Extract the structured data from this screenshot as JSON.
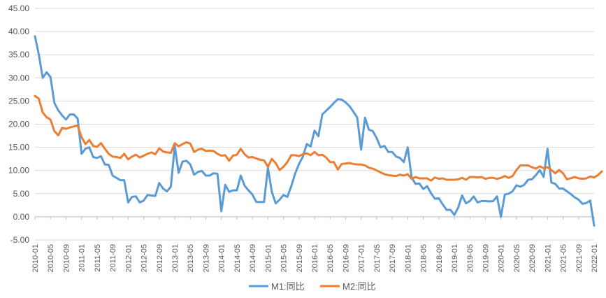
{
  "chart_data": {
    "type": "line",
    "title": "",
    "xlabel": "",
    "ylabel": "",
    "ylim": [
      -5,
      45
    ],
    "y_ticks": [
      "-5.00",
      "0.00",
      "5.00",
      "10.00",
      "15.00",
      "20.00",
      "25.00",
      "30.00",
      "35.00",
      "40.00",
      "45.00"
    ],
    "x_tick_labels": [
      "2010-01",
      "2010-05",
      "2010-09",
      "2011-01",
      "2011-05",
      "2011-09",
      "2012-01",
      "2012-05",
      "2012-09",
      "2013-01",
      "2013-05",
      "2013-09",
      "2014-01",
      "2014-05",
      "2014-09",
      "2015-01",
      "2015-05",
      "2015-09",
      "2016-01",
      "2016-05",
      "2016-09",
      "2017-01",
      "2017-05",
      "2017-09",
      "2018-01",
      "2018-05",
      "2018-09",
      "2019-01",
      "2019-05",
      "2019-09",
      "2020-01",
      "2020-05",
      "2020-09",
      "2021-01",
      "2021-05",
      "2021-09",
      "2022-01"
    ],
    "grid": "horizontal",
    "legend_position": "bottom",
    "series": [
      {
        "name": "M1:同比",
        "color": "#5b9bd5",
        "values": [
          39.0,
          35.0,
          30.0,
          31.2,
          30.2,
          24.6,
          23.0,
          21.9,
          21.0,
          22.1,
          22.1,
          21.2,
          13.6,
          14.7,
          15.0,
          12.9,
          12.7,
          13.1,
          11.3,
          11.2,
          8.9,
          8.4,
          7.9,
          7.9,
          3.1,
          4.3,
          4.4,
          3.1,
          3.5,
          4.7,
          4.6,
          4.5,
          7.3,
          6.1,
          5.5,
          6.5,
          15.3,
          9.5,
          11.9,
          12.1,
          11.3,
          9.1,
          9.7,
          9.9,
          8.9,
          8.9,
          9.4,
          9.3,
          1.2,
          6.9,
          5.4,
          5.7,
          5.7,
          8.9,
          6.7,
          5.7,
          4.8,
          3.2,
          3.2,
          3.2,
          10.6,
          5.4,
          2.9,
          3.7,
          4.7,
          4.3,
          6.6,
          9.3,
          11.4,
          13.0,
          15.7,
          15.2,
          18.6,
          17.4,
          22.1,
          22.9,
          23.7,
          24.6,
          25.4,
          25.3,
          24.7,
          23.9,
          22.7,
          21.4,
          14.5,
          21.4,
          18.8,
          18.5,
          17.0,
          15.0,
          15.3,
          14.0,
          14.0,
          13.0,
          12.7,
          11.8,
          15.0,
          8.5,
          7.1,
          7.2,
          6.0,
          6.6,
          5.1,
          3.9,
          4.0,
          2.7,
          1.5,
          1.5,
          0.4,
          2.0,
          4.6,
          2.9,
          3.4,
          4.4,
          3.1,
          3.4,
          3.4,
          3.3,
          3.4,
          4.4,
          0.0,
          4.8,
          5.0,
          5.5,
          6.8,
          6.5,
          6.9,
          8.0,
          8.1,
          9.0,
          10.1,
          8.6,
          14.7,
          7.4,
          7.1,
          6.1,
          6.1,
          5.5,
          4.9,
          4.2,
          3.7,
          2.8,
          3.0,
          3.5,
          -1.9
        ]
      },
      {
        "name": "M2:同比",
        "color": "#ed7d31",
        "values": [
          26.1,
          25.5,
          22.5,
          21.5,
          21.0,
          18.5,
          17.6,
          19.2,
          19.0,
          19.3,
          19.5,
          19.7,
          17.2,
          15.7,
          16.6,
          15.3,
          15.1,
          15.9,
          14.7,
          13.6,
          13.0,
          12.9,
          12.7,
          13.6,
          12.4,
          13.0,
          13.4,
          12.8,
          13.2,
          13.6,
          13.9,
          13.5,
          14.8,
          14.1,
          13.9,
          13.8,
          15.9,
          15.2,
          15.7,
          16.1,
          15.8,
          14.0,
          14.5,
          14.7,
          14.2,
          14.3,
          14.2,
          13.6,
          13.2,
          13.3,
          12.1,
          13.2,
          13.4,
          14.7,
          13.5,
          12.8,
          12.9,
          12.6,
          12.3,
          12.2,
          10.8,
          12.5,
          11.6,
          10.1,
          10.8,
          11.8,
          13.3,
          13.3,
          13.1,
          13.5,
          13.7,
          13.3,
          14.0,
          13.3,
          13.4,
          12.8,
          11.8,
          11.8,
          10.2,
          11.4,
          11.5,
          11.6,
          11.4,
          11.3,
          11.3,
          11.1,
          10.6,
          10.4,
          10.0,
          9.6,
          9.2,
          9.0,
          8.9,
          8.8,
          9.1,
          8.9,
          9.2,
          8.2,
          8.6,
          8.3,
          8.3,
          8.3,
          7.8,
          8.5,
          8.2,
          8.3,
          8.0,
          8.0,
          8.0,
          8.1,
          8.4,
          8.0,
          8.6,
          8.6,
          8.5,
          8.6,
          8.2,
          8.4,
          8.4,
          8.2,
          8.4,
          8.8,
          8.4,
          8.8,
          10.1,
          11.1,
          11.1,
          11.1,
          10.7,
          10.4,
          10.9,
          10.5,
          10.7,
          10.1,
          9.4,
          10.1,
          9.4,
          8.1,
          8.3,
          8.6,
          8.3,
          8.2,
          8.3,
          8.7,
          8.5,
          9.0,
          9.8
        ]
      }
    ]
  }
}
